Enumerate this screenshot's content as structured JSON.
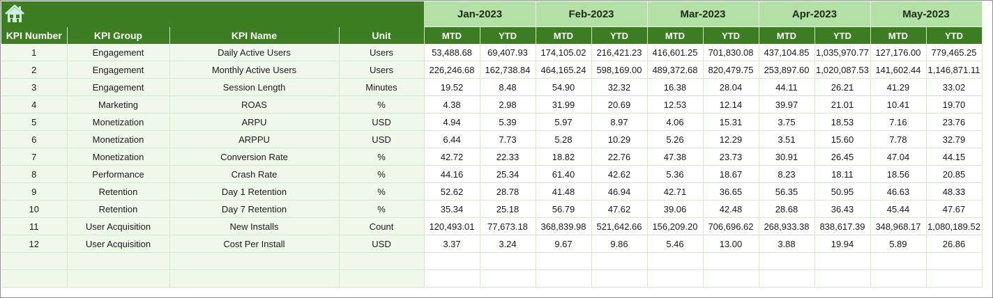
{
  "banner": {
    "home_icon": "home-icon",
    "months": [
      "Jan-2023",
      "Feb-2023",
      "Mar-2023",
      "Apr-2023",
      "May-2023"
    ]
  },
  "header": {
    "kpi_number": "KPI Number",
    "kpi_group": "KPI Group",
    "kpi_name": "KPI Name",
    "unit": "Unit",
    "mtd": "MTD",
    "ytd": "YTD"
  },
  "rows": [
    {
      "num": "1",
      "group": "Engagement",
      "name": "Daily Active Users",
      "unit": "Users",
      "vals": [
        "53,488.68",
        "69,407.93",
        "174,105.02",
        "216,421.23",
        "416,601.25",
        "701,830.08",
        "437,104.85",
        "1,035,970.77",
        "127,176.00",
        "779,465.25"
      ]
    },
    {
      "num": "2",
      "group": "Engagement",
      "name": "Monthly Active Users",
      "unit": "Users",
      "vals": [
        "226,246.68",
        "162,738.84",
        "464,165.24",
        "598,169.00",
        "489,372.68",
        "820,479.75",
        "253,897.60",
        "1,020,087.53",
        "141,602.44",
        "1,146,871.11"
      ]
    },
    {
      "num": "3",
      "group": "Engagement",
      "name": "Session Length",
      "unit": "Minutes",
      "vals": [
        "19.52",
        "8.48",
        "54.90",
        "32.32",
        "16.38",
        "28.04",
        "44.11",
        "26.21",
        "41.29",
        "33.02"
      ]
    },
    {
      "num": "4",
      "group": "Marketing",
      "name": "ROAS",
      "unit": "%",
      "vals": [
        "4.38",
        "2.98",
        "31.99",
        "20.69",
        "12.53",
        "12.14",
        "39.97",
        "21.01",
        "10.41",
        "19.70"
      ]
    },
    {
      "num": "5",
      "group": "Monetization",
      "name": "ARPU",
      "unit": "USD",
      "vals": [
        "4.94",
        "5.39",
        "5.97",
        "8.97",
        "4.06",
        "15.31",
        "3.75",
        "18.53",
        "7.16",
        "23.76"
      ]
    },
    {
      "num": "6",
      "group": "Monetization",
      "name": "ARPPU",
      "unit": "USD",
      "vals": [
        "6.44",
        "7.73",
        "5.28",
        "10.29",
        "5.26",
        "12.29",
        "3.51",
        "15.60",
        "7.78",
        "32.79"
      ]
    },
    {
      "num": "7",
      "group": "Monetization",
      "name": "Conversion Rate",
      "unit": "%",
      "vals": [
        "42.72",
        "22.33",
        "18.82",
        "22.76",
        "47.38",
        "23.73",
        "30.91",
        "26.45",
        "47.04",
        "44.15"
      ]
    },
    {
      "num": "8",
      "group": "Performance",
      "name": "Crash Rate",
      "unit": "%",
      "vals": [
        "44.16",
        "25.34",
        "61.40",
        "42.62",
        "5.36",
        "18.67",
        "8.23",
        "18.11",
        "18.56",
        "20.85"
      ]
    },
    {
      "num": "9",
      "group": "Retention",
      "name": "Day 1 Retention",
      "unit": "%",
      "vals": [
        "52.62",
        "28.78",
        "41.48",
        "46.94",
        "42.71",
        "36.65",
        "56.35",
        "50.95",
        "46.63",
        "48.33"
      ]
    },
    {
      "num": "10",
      "group": "Retention",
      "name": "Day 7 Retention",
      "unit": "%",
      "vals": [
        "35.34",
        "25.18",
        "56.79",
        "47.62",
        "39.06",
        "42.48",
        "28.68",
        "36.43",
        "45.44",
        "47.67"
      ]
    },
    {
      "num": "11",
      "group": "User Acquisition",
      "name": "New Installs",
      "unit": "Count",
      "vals": [
        "120,493.01",
        "77,673.18",
        "368,839.98",
        "521,642.66",
        "156,209.20",
        "706,696.62",
        "268,933.38",
        "838,617.39",
        "348,968.17",
        "1,080,189.52"
      ]
    },
    {
      "num": "12",
      "group": "User Acquisition",
      "name": "Cost Per Install",
      "unit": "USD",
      "vals": [
        "3.37",
        "3.24",
        "9.67",
        "9.86",
        "5.46",
        "13.00",
        "3.88",
        "19.94",
        "5.89",
        "26.86"
      ]
    }
  ],
  "colors": {
    "dark_green": "#3c7d22",
    "light_green": "#b3e0a4",
    "row_tint": "#f0f8ec"
  }
}
